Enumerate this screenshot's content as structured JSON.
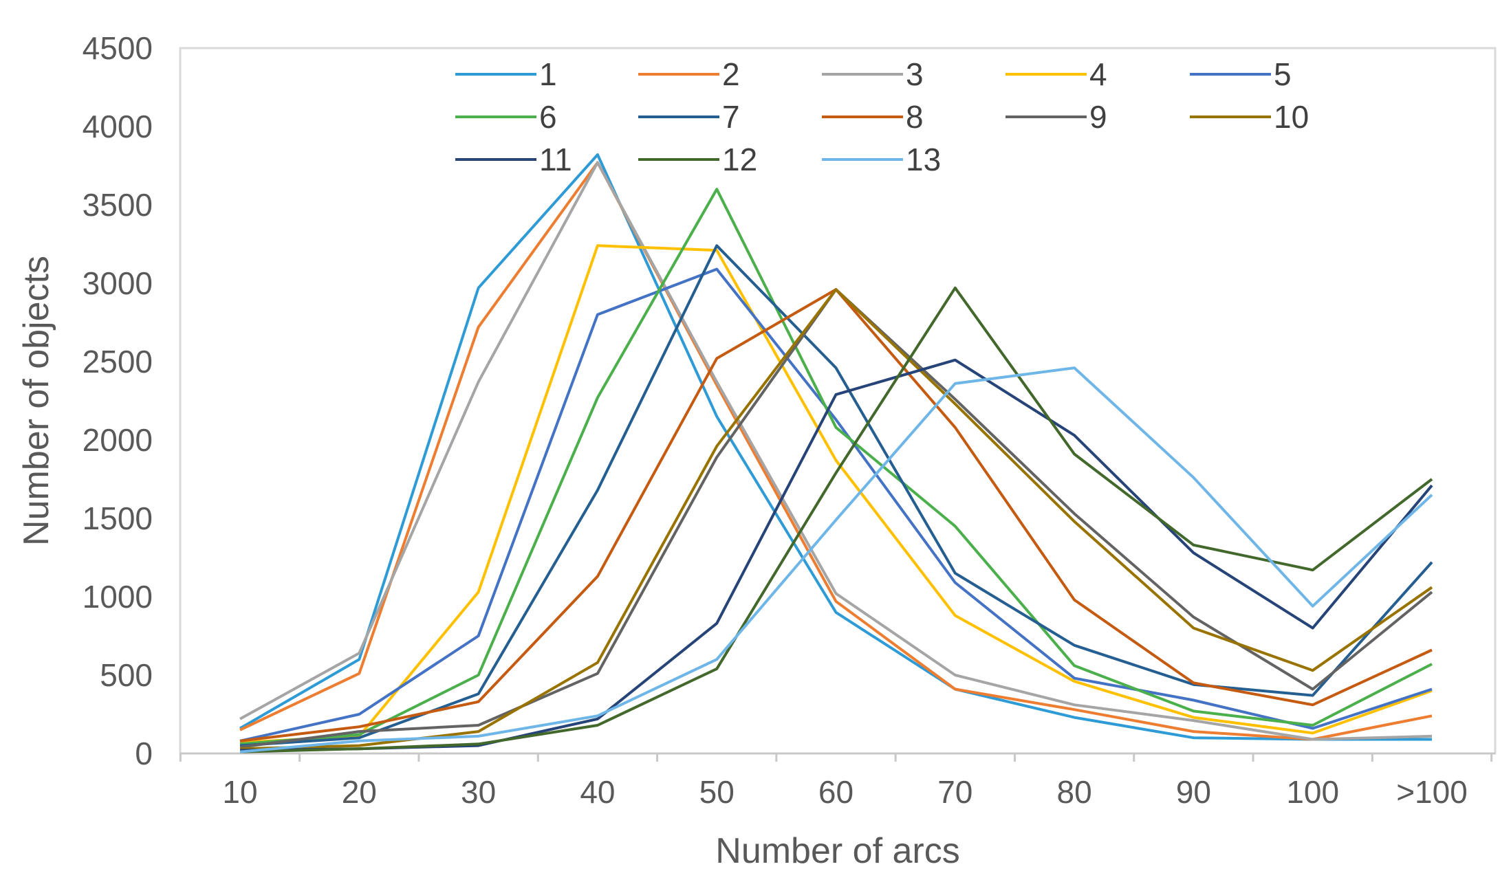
{
  "chart_data": {
    "type": "line",
    "title": "",
    "xlabel": "Number of arcs",
    "ylabel": "Number of objects",
    "categories": [
      "10",
      "20",
      "30",
      "40",
      "50",
      "60",
      "70",
      "80",
      "90",
      "100",
      ">100"
    ],
    "ylim": [
      0,
      4500
    ],
    "yticks": [
      0,
      500,
      1000,
      1500,
      2000,
      2500,
      3000,
      3500,
      4000,
      4500
    ],
    "grid": false,
    "legend": "top",
    "series": [
      {
        "name": "1",
        "color": "#2E9BD6",
        "values": [
          160,
          600,
          2970,
          3820,
          2150,
          900,
          410,
          230,
          100,
          90,
          90
        ]
      },
      {
        "name": "2",
        "color": "#ED7D31",
        "values": [
          150,
          510,
          2720,
          3770,
          2350,
          970,
          410,
          280,
          140,
          90,
          240
        ]
      },
      {
        "name": "3",
        "color": "#A5A5A5",
        "values": [
          220,
          640,
          2370,
          3770,
          2370,
          1020,
          500,
          310,
          210,
          90,
          110
        ]
      },
      {
        "name": "4",
        "color": "#FFC000",
        "values": [
          70,
          110,
          1030,
          3240,
          3210,
          1870,
          880,
          460,
          230,
          130,
          400
        ]
      },
      {
        "name": "5",
        "color": "#4472C4",
        "values": [
          80,
          250,
          750,
          2800,
          3090,
          2130,
          1090,
          480,
          340,
          160,
          410
        ]
      },
      {
        "name": "6",
        "color": "#4BB04B",
        "values": [
          60,
          120,
          500,
          2270,
          3600,
          2080,
          1450,
          560,
          270,
          180,
          570
        ]
      },
      {
        "name": "7",
        "color": "#255E91",
        "values": [
          50,
          100,
          380,
          1680,
          3240,
          2460,
          1150,
          690,
          440,
          370,
          1220
        ]
      },
      {
        "name": "8",
        "color": "#C55A11",
        "values": [
          80,
          170,
          330,
          1130,
          2520,
          2960,
          2080,
          980,
          450,
          310,
          660
        ]
      },
      {
        "name": "9",
        "color": "#636363",
        "values": [
          40,
          140,
          180,
          510,
          1890,
          2960,
          2260,
          1530,
          870,
          410,
          1030
        ]
      },
      {
        "name": "10",
        "color": "#997300",
        "values": [
          30,
          50,
          140,
          580,
          1960,
          2960,
          2230,
          1480,
          800,
          530,
          1060
        ]
      },
      {
        "name": "11",
        "color": "#264478",
        "values": [
          20,
          30,
          50,
          220,
          830,
          2290,
          2510,
          2030,
          1280,
          800,
          1710
        ]
      },
      {
        "name": "12",
        "color": "#43682B",
        "values": [
          10,
          30,
          60,
          180,
          540,
          1790,
          2970,
          1910,
          1330,
          1170,
          1750
        ]
      },
      {
        "name": "13",
        "color": "#6FB6E8",
        "values": [
          10,
          80,
          110,
          240,
          600,
          1490,
          2360,
          2460,
          1760,
          940,
          1650
        ]
      }
    ]
  }
}
